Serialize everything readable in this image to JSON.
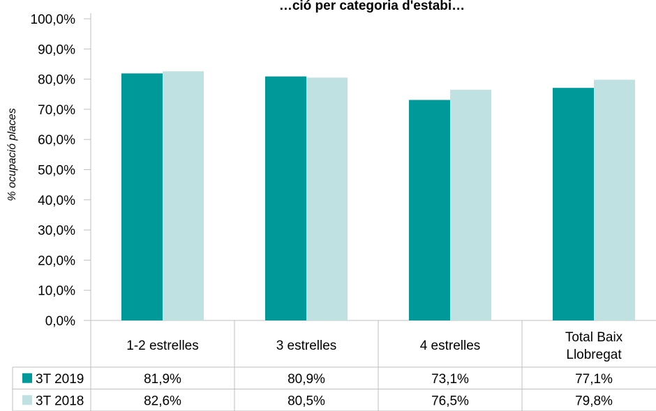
{
  "chart_data": {
    "type": "bar",
    "title": "…ció per categoria d'estabi…",
    "ylabel": "% ocupació places",
    "xlabel": "",
    "ylim": [
      0,
      100
    ],
    "yticks": [
      "0,0%",
      "10,0%",
      "20,0%",
      "30,0%",
      "40,0%",
      "50,0%",
      "60,0%",
      "70,0%",
      "80,0%",
      "90,0%",
      "100,0%"
    ],
    "categories": [
      "1-2 estrelles",
      "3 estrelles",
      "4 estrelles",
      "Total Baix Llobregat"
    ],
    "series": [
      {
        "name": "3T 2019",
        "color": "#009999",
        "values": [
          81.9,
          80.9,
          73.1,
          77.1
        ],
        "labels": [
          "81,9%",
          "80,9%",
          "73,1%",
          "77,1%"
        ]
      },
      {
        "name": "3T 2018",
        "color": "#bfe1e1",
        "values": [
          82.6,
          80.5,
          76.5,
          79.8
        ],
        "labels": [
          "82,6%",
          "80,5%",
          "76,5%",
          "79,8%"
        ]
      }
    ],
    "grid": false,
    "legend": "data-table-left"
  }
}
